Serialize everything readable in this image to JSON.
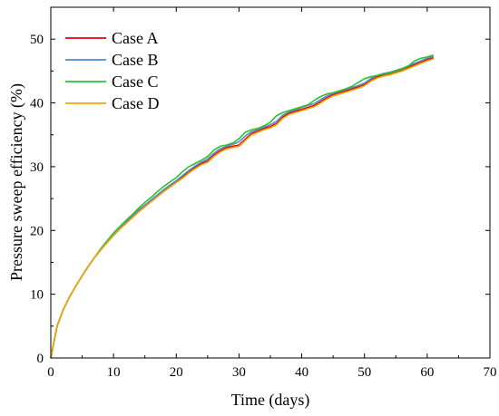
{
  "chart_data": {
    "type": "line",
    "xlabel": "Time (days)",
    "ylabel": "Pressure sweep efficiency (%)",
    "xlim": [
      0,
      70
    ],
    "ylim": [
      0,
      55
    ],
    "xticks": [
      "0",
      "10",
      "20",
      "30",
      "40",
      "50",
      "60",
      "70"
    ],
    "yticks": [
      "0",
      "10",
      "20",
      "30",
      "40",
      "50"
    ],
    "grid": false,
    "legend_position": "top-left",
    "series": [
      {
        "name": "Case A",
        "color": "#e8000b",
        "x": [
          0,
          1,
          2,
          3,
          4,
          5,
          6,
          7,
          8,
          9,
          10,
          11,
          12,
          13,
          14,
          15,
          16,
          17,
          18,
          19,
          20,
          21,
          22,
          23,
          24,
          25,
          26,
          27,
          28,
          29,
          30,
          31,
          32,
          33,
          34,
          35,
          36,
          37,
          38,
          39,
          40,
          41,
          42,
          43,
          44,
          45,
          46,
          47,
          48,
          49,
          50,
          51,
          52,
          53,
          54,
          55,
          56,
          57,
          58,
          59,
          60,
          61
        ],
        "y": [
          0,
          5.0,
          7.6,
          9.6,
          11.3,
          12.9,
          14.4,
          15.8,
          17.0,
          18.2,
          19.3,
          20.3,
          21.3,
          22.2,
          23.0,
          23.9,
          24.7,
          25.5,
          26.3,
          27.0,
          27.7,
          28.4,
          29.2,
          29.9,
          30.5,
          30.9,
          31.8,
          32.5,
          33.0,
          33.2,
          33.4,
          34.3,
          35.2,
          35.6,
          36.0,
          36.3,
          36.8,
          37.8,
          38.4,
          38.7,
          39.0,
          39.3,
          39.6,
          40.2,
          40.8,
          41.3,
          41.6,
          41.9,
          42.2,
          42.5,
          42.9,
          43.6,
          44.1,
          44.4,
          44.6,
          44.9,
          45.2,
          45.6,
          46.0,
          46.4,
          46.8,
          47.1
        ]
      },
      {
        "name": "Case B",
        "color": "#4c8ed0",
        "x": [
          0,
          1,
          2,
          3,
          4,
          5,
          6,
          7,
          8,
          9,
          10,
          11,
          12,
          13,
          14,
          15,
          16,
          17,
          18,
          19,
          20,
          21,
          22,
          23,
          24,
          25,
          26,
          27,
          28,
          29,
          30,
          31,
          32,
          33,
          34,
          35,
          36,
          37,
          38,
          39,
          40,
          41,
          42,
          43,
          44,
          45,
          46,
          47,
          48,
          49,
          50,
          51,
          52,
          53,
          54,
          55,
          56,
          57,
          58,
          59,
          60,
          61
        ],
        "y": [
          0,
          5.0,
          7.6,
          9.6,
          11.3,
          12.9,
          14.4,
          15.8,
          17.1,
          18.3,
          19.4,
          20.4,
          21.4,
          22.3,
          23.2,
          24.0,
          24.8,
          25.6,
          26.4,
          27.1,
          27.8,
          28.6,
          29.4,
          30.1,
          30.7,
          31.2,
          32.1,
          32.8,
          33.2,
          33.5,
          33.9,
          34.8,
          35.5,
          35.8,
          36.2,
          36.6,
          37.1,
          38.1,
          38.6,
          38.9,
          39.3,
          39.6,
          39.9,
          40.5,
          41.1,
          41.5,
          41.8,
          42.1,
          42.4,
          42.7,
          43.1,
          43.8,
          44.3,
          44.6,
          44.8,
          45.1,
          45.4,
          45.8,
          46.2,
          46.6,
          47.0,
          47.3
        ]
      },
      {
        "name": "Case C",
        "color": "#2fc12f",
        "x": [
          0,
          1,
          2,
          3,
          4,
          5,
          6,
          7,
          8,
          9,
          10,
          11,
          12,
          13,
          14,
          15,
          16,
          17,
          18,
          19,
          20,
          21,
          22,
          23,
          24,
          25,
          26,
          27,
          28,
          29,
          30,
          31,
          32,
          33,
          34,
          35,
          36,
          37,
          38,
          39,
          40,
          41,
          42,
          43,
          44,
          45,
          46,
          47,
          48,
          49,
          50,
          51,
          52,
          53,
          54,
          55,
          56,
          57,
          58,
          59,
          60,
          61
        ],
        "y": [
          0,
          5.0,
          7.6,
          9.6,
          11.3,
          12.9,
          14.4,
          15.8,
          17.2,
          18.4,
          19.6,
          20.6,
          21.6,
          22.5,
          23.5,
          24.4,
          25.2,
          26.1,
          26.9,
          27.6,
          28.3,
          29.2,
          30.0,
          30.5,
          31.0,
          31.6,
          32.6,
          33.2,
          33.4,
          33.7,
          34.4,
          35.4,
          35.8,
          36.0,
          36.4,
          37.0,
          38.0,
          38.5,
          38.8,
          39.1,
          39.4,
          39.7,
          40.4,
          41.0,
          41.4,
          41.6,
          41.9,
          42.2,
          42.6,
          43.2,
          43.8,
          44.1,
          44.3,
          44.5,
          44.7,
          45.0,
          45.3,
          45.8,
          46.6,
          47.0,
          47.2,
          47.5
        ]
      },
      {
        "name": "Case D",
        "color": "#f5a200",
        "x": [
          0,
          1,
          2,
          3,
          4,
          5,
          6,
          7,
          8,
          9,
          10,
          11,
          12,
          13,
          14,
          15,
          16,
          17,
          18,
          19,
          20,
          21,
          22,
          23,
          24,
          25,
          26,
          27,
          28,
          29,
          30,
          31,
          32,
          33,
          34,
          35,
          36,
          37,
          38,
          39,
          40,
          41,
          42,
          43,
          44,
          45,
          46,
          47,
          48,
          49,
          50,
          51,
          52,
          53,
          54,
          55,
          56,
          57,
          58,
          59,
          60,
          61
        ],
        "y": [
          0,
          5.0,
          7.6,
          9.6,
          11.3,
          12.9,
          14.4,
          15.8,
          17.0,
          18.1,
          19.2,
          20.2,
          21.1,
          22.0,
          22.9,
          23.7,
          24.5,
          25.3,
          26.1,
          26.8,
          27.5,
          28.2,
          29.0,
          29.7,
          30.3,
          30.7,
          31.6,
          32.3,
          32.8,
          33.0,
          33.2,
          34.1,
          35.0,
          35.4,
          35.8,
          36.1,
          36.6,
          37.6,
          38.2,
          38.5,
          38.8,
          39.1,
          39.4,
          40.0,
          40.6,
          41.1,
          41.4,
          41.7,
          42.0,
          42.3,
          42.7,
          43.4,
          43.9,
          44.2,
          44.4,
          44.7,
          45.0,
          45.4,
          45.8,
          46.2,
          46.6,
          46.9
        ]
      }
    ]
  }
}
